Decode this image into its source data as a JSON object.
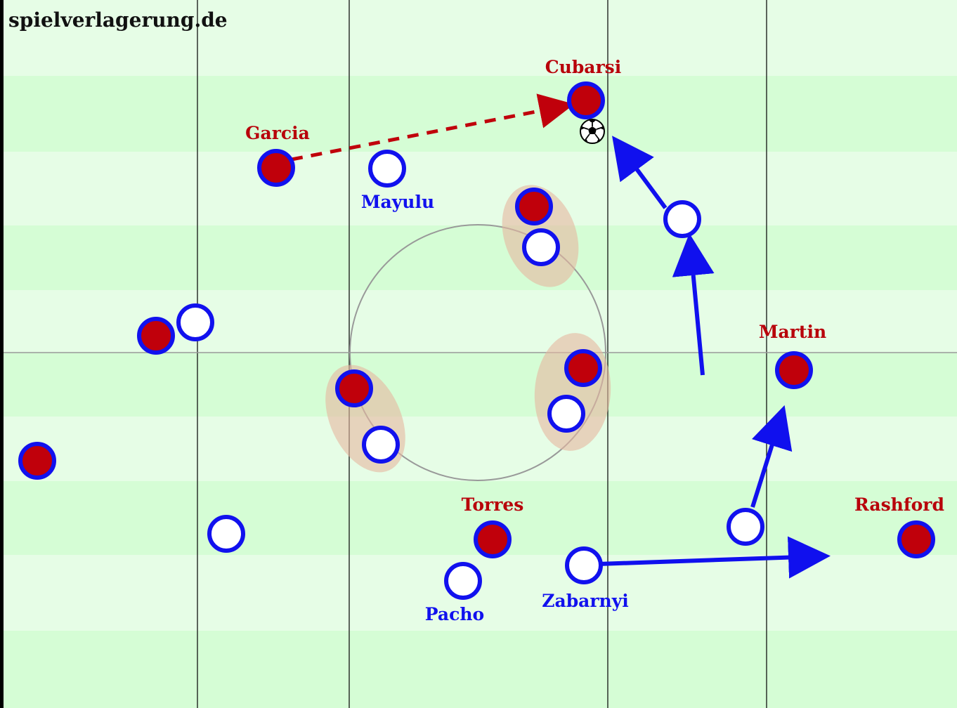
{
  "watermark": "spielverlagerung.de",
  "colors": {
    "stripe_light": "#e6fde6",
    "stripe_dark": "#d5fdd5",
    "red_team_fill": "#c0000b",
    "blue_team_fill": "#ffffff",
    "player_ring": "#1111ee",
    "red_label": "#b8000a",
    "blue_label": "#1111ee",
    "blue_arrow": "#1010ee",
    "red_arrow": "#c0000b",
    "pairing_highlight": "#e6b7a0"
  },
  "players": {
    "cubarsi": {
      "label": "Cubarsi",
      "team": "red"
    },
    "garcia": {
      "label": "Garcia",
      "team": "red"
    },
    "martin": {
      "label": "Martin",
      "team": "red"
    },
    "torres": {
      "label": "Torres",
      "team": "red"
    },
    "rashford": {
      "label": "Rashford",
      "team": "red"
    },
    "mayulu": {
      "label": "Mayulu",
      "team": "blue"
    },
    "pacho": {
      "label": "Pacho",
      "team": "blue"
    },
    "zabarnyi": {
      "label": "Zabarnyi",
      "team": "blue"
    }
  },
  "ball": {
    "icon": "soccer-ball-icon"
  }
}
